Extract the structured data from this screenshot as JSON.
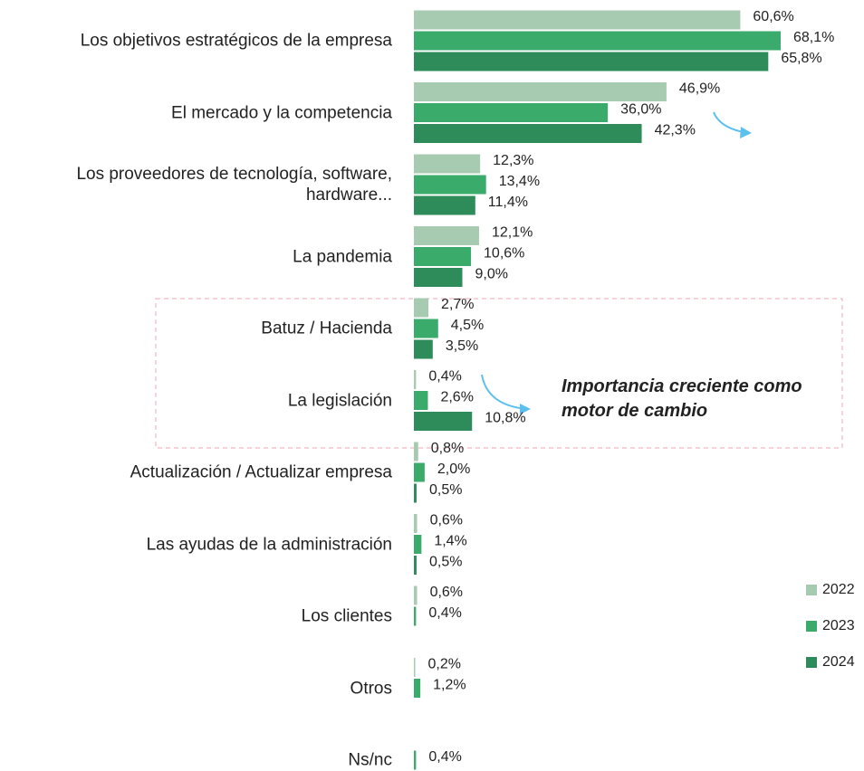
{
  "chart_data": {
    "type": "barh",
    "categories": [
      "Los objetivos estratégicos de la empresa",
      "El mercado y la competencia",
      "Los proveedores de tecnología, software, hardware...",
      "La pandemia",
      "Batuz / Hacienda",
      "La legislación",
      "Actualización / Actualizar empresa",
      "Las ayudas de la administración",
      "Los clientes",
      "Otros",
      "Ns/nc"
    ],
    "series": [
      {
        "name": "2022",
        "color": "#a6cbb0",
        "values": [
          60.6,
          46.9,
          12.3,
          12.1,
          2.7,
          0.4,
          0.8,
          0.6,
          0.6,
          0.2,
          null
        ],
        "value_labels": [
          "60,6%",
          "46,9%",
          "12,3%",
          "12,1%",
          "2,7%",
          "0,4%",
          "0,8%",
          "0,6%",
          "0,6%",
          "0,2%",
          null
        ]
      },
      {
        "name": "2023",
        "color": "#3aab6b",
        "values": [
          68.1,
          36.0,
          13.4,
          10.6,
          4.5,
          2.6,
          2.0,
          1.4,
          0.4,
          1.2,
          0.4
        ],
        "value_labels": [
          "68,1%",
          "36,0%",
          "13,4%",
          "10,6%",
          "4,5%",
          "2,6%",
          "2,0%",
          "1,4%",
          "0,4%",
          "1,2%",
          "0,4%"
        ]
      },
      {
        "name": "2024",
        "color": "#2e8b5a",
        "values": [
          65.8,
          42.3,
          11.4,
          9.0,
          3.5,
          10.8,
          0.5,
          0.5,
          null,
          null,
          null
        ],
        "value_labels": [
          "65,8%",
          "42,3%",
          "11,4%",
          "9,0%",
          "3,5%",
          "10,8%",
          "0,5%",
          "0,5%",
          null,
          null,
          null
        ]
      }
    ],
    "annotation": "Importancia creciente como motor de cambio"
  }
}
